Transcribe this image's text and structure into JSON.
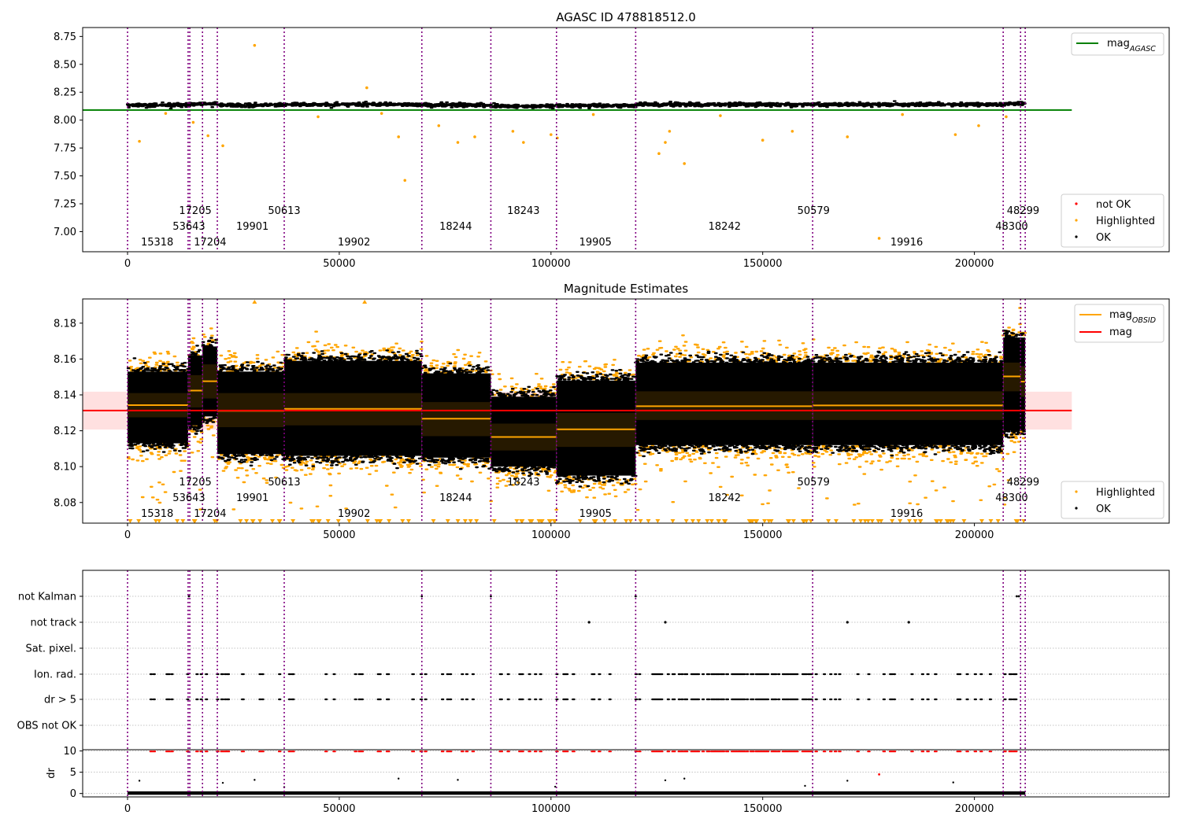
{
  "chart_data": [
    {
      "type": "scatter",
      "title": "AGASC ID 478818512.0",
      "xlim": [
        -10600,
        246000
      ],
      "ylim": [
        6.82,
        8.83
      ],
      "xticks": [
        0,
        50000,
        100000,
        150000,
        200000
      ],
      "yticks": [
        7.0,
        7.25,
        7.5,
        7.75,
        8.0,
        8.25,
        8.5,
        8.75
      ],
      "ytick_labels": [
        "7.00",
        "7.25",
        "7.50",
        "7.75",
        "8.00",
        "8.25",
        "8.50",
        "8.75"
      ],
      "mag_agasc": 8.09,
      "band": {
        "x0": -10600,
        "x1": 223000
      },
      "obs_boundaries": [
        0,
        14300,
        14700,
        17700,
        21200,
        37000,
        69500,
        85800,
        101300,
        120000,
        161800,
        206800,
        210900,
        212000
      ],
      "obs_labels": [
        {
          "text": "15318",
          "x": 7000,
          "row": 3
        },
        {
          "text": "53643",
          "x": 14500,
          "row": 2
        },
        {
          "text": "17205",
          "x": 16000,
          "row": 1
        },
        {
          "text": "17204",
          "x": 19500,
          "row": 3
        },
        {
          "text": "19901",
          "x": 29500,
          "row": 2
        },
        {
          "text": "50613",
          "x": 37000,
          "row": 1
        },
        {
          "text": "19902",
          "x": 53500,
          "row": 3
        },
        {
          "text": "18244",
          "x": 77500,
          "row": 2
        },
        {
          "text": "18243",
          "x": 93500,
          "row": 1
        },
        {
          "text": "19905",
          "x": 110500,
          "row": 3
        },
        {
          "text": "18242",
          "x": 141000,
          "row": 2
        },
        {
          "text": "50579",
          "x": 162000,
          "row": 1
        },
        {
          "text": "19916",
          "x": 184000,
          "row": 3
        },
        {
          "text": "48300",
          "x": 208800,
          "row": 2
        },
        {
          "text": "48299",
          "x": 211500,
          "row": 1
        }
      ],
      "ok_segments": [
        {
          "x0": 0,
          "x1": 14300,
          "y": 8.135
        },
        {
          "x0": 14300,
          "x1": 14700,
          "y": 8.14
        },
        {
          "x0": 14700,
          "x1": 17700,
          "y": 8.145
        },
        {
          "x0": 17700,
          "x1": 21200,
          "y": 8.15
        },
        {
          "x0": 21200,
          "x1": 37000,
          "y": 8.135
        },
        {
          "x0": 37000,
          "x1": 69500,
          "y": 8.14
        },
        {
          "x0": 69500,
          "x1": 85800,
          "y": 8.135
        },
        {
          "x0": 85800,
          "x1": 101300,
          "y": 8.125
        },
        {
          "x0": 101300,
          "x1": 120000,
          "y": 8.13
        },
        {
          "x0": 120000,
          "x1": 161800,
          "y": 8.14
        },
        {
          "x0": 161800,
          "x1": 206800,
          "y": 8.14
        },
        {
          "x0": 206800,
          "x1": 212000,
          "y": 8.15
        }
      ],
      "highlighted": [
        {
          "x": 2800,
          "y": 7.81
        },
        {
          "x": 19000,
          "y": 7.86
        },
        {
          "x": 22500,
          "y": 7.77
        },
        {
          "x": 15500,
          "y": 7.98
        },
        {
          "x": 30000,
          "y": 8.67
        },
        {
          "x": 56500,
          "y": 8.29
        },
        {
          "x": 65500,
          "y": 7.46
        },
        {
          "x": 64000,
          "y": 7.85
        },
        {
          "x": 73500,
          "y": 7.95
        },
        {
          "x": 78000,
          "y": 7.8
        },
        {
          "x": 82000,
          "y": 7.85
        },
        {
          "x": 91000,
          "y": 7.9
        },
        {
          "x": 93500,
          "y": 7.8
        },
        {
          "x": 100000,
          "y": 7.87
        },
        {
          "x": 101500,
          "y": 7.84
        },
        {
          "x": 125500,
          "y": 7.7
        },
        {
          "x": 127000,
          "y": 7.8
        },
        {
          "x": 131500,
          "y": 7.61
        },
        {
          "x": 128000,
          "y": 7.9
        },
        {
          "x": 150000,
          "y": 7.82
        },
        {
          "x": 157000,
          "y": 7.9
        },
        {
          "x": 170000,
          "y": 7.85
        },
        {
          "x": 177500,
          "y": 6.94
        },
        {
          "x": 195500,
          "y": 7.87
        },
        {
          "x": 201000,
          "y": 7.95
        },
        {
          "x": 207500,
          "y": 8.03
        },
        {
          "x": 9000,
          "y": 8.06
        },
        {
          "x": 45000,
          "y": 8.03
        },
        {
          "x": 60000,
          "y": 8.06
        },
        {
          "x": 110000,
          "y": 8.05
        },
        {
          "x": 140000,
          "y": 8.04
        },
        {
          "x": 183000,
          "y": 8.05
        }
      ],
      "legend_top": [
        "mag_AGASC"
      ],
      "legend_bottom": [
        "not OK",
        "Highlighted",
        "OK"
      ]
    },
    {
      "type": "scatter",
      "title": "Magnitude Estimates",
      "xlim": [
        -10600,
        246000
      ],
      "ylim": [
        8.0685,
        8.1935
      ],
      "xticks": [
        0,
        50000,
        100000,
        150000,
        200000
      ],
      "yticks": [
        8.08,
        8.1,
        8.12,
        8.14,
        8.16,
        8.18
      ],
      "ytick_labels": [
        "8.08",
        "8.10",
        "8.12",
        "8.14",
        "8.16",
        "8.18"
      ],
      "mag": 8.1313,
      "mag_band": [
        8.1207,
        8.1418
      ],
      "obsid_means": [
        {
          "x0": 0,
          "x1": 14300,
          "y": 8.1343,
          "lo": 8.1275,
          "hi": 8.141
        },
        {
          "x0": 14300,
          "x1": 17700,
          "y": 8.1424,
          "lo": 8.133,
          "hi": 8.151
        },
        {
          "x0": 17700,
          "x1": 21200,
          "y": 8.1476,
          "lo": 8.138,
          "hi": 8.157
        },
        {
          "x0": 21200,
          "x1": 37000,
          "y": 8.1311,
          "lo": 8.122,
          "hi": 8.141
        },
        {
          "x0": 37000,
          "x1": 69500,
          "y": 8.1322,
          "lo": 8.123,
          "hi": 8.141
        },
        {
          "x0": 69500,
          "x1": 85800,
          "y": 8.1267,
          "lo": 8.117,
          "hi": 8.136
        },
        {
          "x0": 85800,
          "x1": 101300,
          "y": 8.1165,
          "lo": 8.109,
          "hi": 8.124
        },
        {
          "x0": 101300,
          "x1": 120000,
          "y": 8.1208,
          "lo": 8.111,
          "hi": 8.13
        },
        {
          "x0": 120000,
          "x1": 161800,
          "y": 8.1337,
          "lo": 8.126,
          "hi": 8.142
        },
        {
          "x0": 161800,
          "x1": 206800,
          "y": 8.1341,
          "lo": 8.126,
          "hi": 8.142
        },
        {
          "x0": 206800,
          "x1": 210900,
          "y": 8.1503,
          "lo": 8.142,
          "hi": 8.158
        },
        {
          "x0": 210900,
          "x1": 212000,
          "y": 8.1474,
          "lo": 8.139,
          "hi": 8.156
        }
      ],
      "ok_segments": [
        {
          "x0": 0,
          "x1": 14300,
          "lo": 8.113,
          "hi": 8.153
        },
        {
          "x0": 14300,
          "x1": 17700,
          "lo": 8.123,
          "hi": 8.162
        },
        {
          "x0": 17700,
          "x1": 21200,
          "lo": 8.128,
          "hi": 8.167
        },
        {
          "x0": 21200,
          "x1": 37000,
          "lo": 8.107,
          "hi": 8.153
        },
        {
          "x0": 37000,
          "x1": 69500,
          "lo": 8.106,
          "hi": 8.159
        },
        {
          "x0": 69500,
          "x1": 85800,
          "lo": 8.105,
          "hi": 8.152
        },
        {
          "x0": 85800,
          "x1": 101300,
          "lo": 8.1,
          "hi": 8.139
        },
        {
          "x0": 101300,
          "x1": 120000,
          "lo": 8.095,
          "hi": 8.148
        },
        {
          "x0": 120000,
          "x1": 161800,
          "lo": 8.112,
          "hi": 8.158
        },
        {
          "x0": 161800,
          "x1": 206800,
          "lo": 8.112,
          "hi": 8.158
        },
        {
          "x0": 206800,
          "x1": 212000,
          "lo": 8.12,
          "hi": 8.172
        }
      ],
      "legend_top": [
        "mag_OBSID",
        "mag"
      ],
      "legend_bottom": [
        "Highlighted",
        "OK"
      ]
    },
    {
      "type": "scatter",
      "xlim": [
        -10600,
        246000
      ],
      "flag_rows": [
        "not Kalman",
        "not track",
        "Sat. pixel.",
        "Ion. rad.",
        "dr > 5",
        "OBS not OK"
      ],
      "dr_yticks": [
        0,
        5,
        10
      ],
      "dr_ylim": [
        -0.8,
        10.3
      ],
      "dr_ylabel": "dr",
      "xticks": [
        0,
        50000,
        100000,
        150000,
        200000
      ],
      "not_kalman_x": [
        14500,
        69500,
        85800,
        120000,
        210000,
        210500
      ],
      "not_track_x": [
        109000,
        127000,
        170000,
        184500
      ],
      "dr_outliers": [
        {
          "x": 2800,
          "y": 3.0
        },
        {
          "x": 22500,
          "y": 2.5
        },
        {
          "x": 30000,
          "y": 3.2
        },
        {
          "x": 64000,
          "y": 3.5
        },
        {
          "x": 78000,
          "y": 3.2
        },
        {
          "x": 127000,
          "y": 3.1
        },
        {
          "x": 131500,
          "y": 3.5
        },
        {
          "x": 170000,
          "y": 3.0
        },
        {
          "x": 195000,
          "y": 2.6
        },
        {
          "x": 37000,
          "y": 1.5
        },
        {
          "x": 101000,
          "y": 1.6
        },
        {
          "x": 160000,
          "y": 1.8
        }
      ],
      "dr_red_outliers": [
        {
          "x": 177500,
          "y": 4.5
        }
      ]
    }
  ]
}
